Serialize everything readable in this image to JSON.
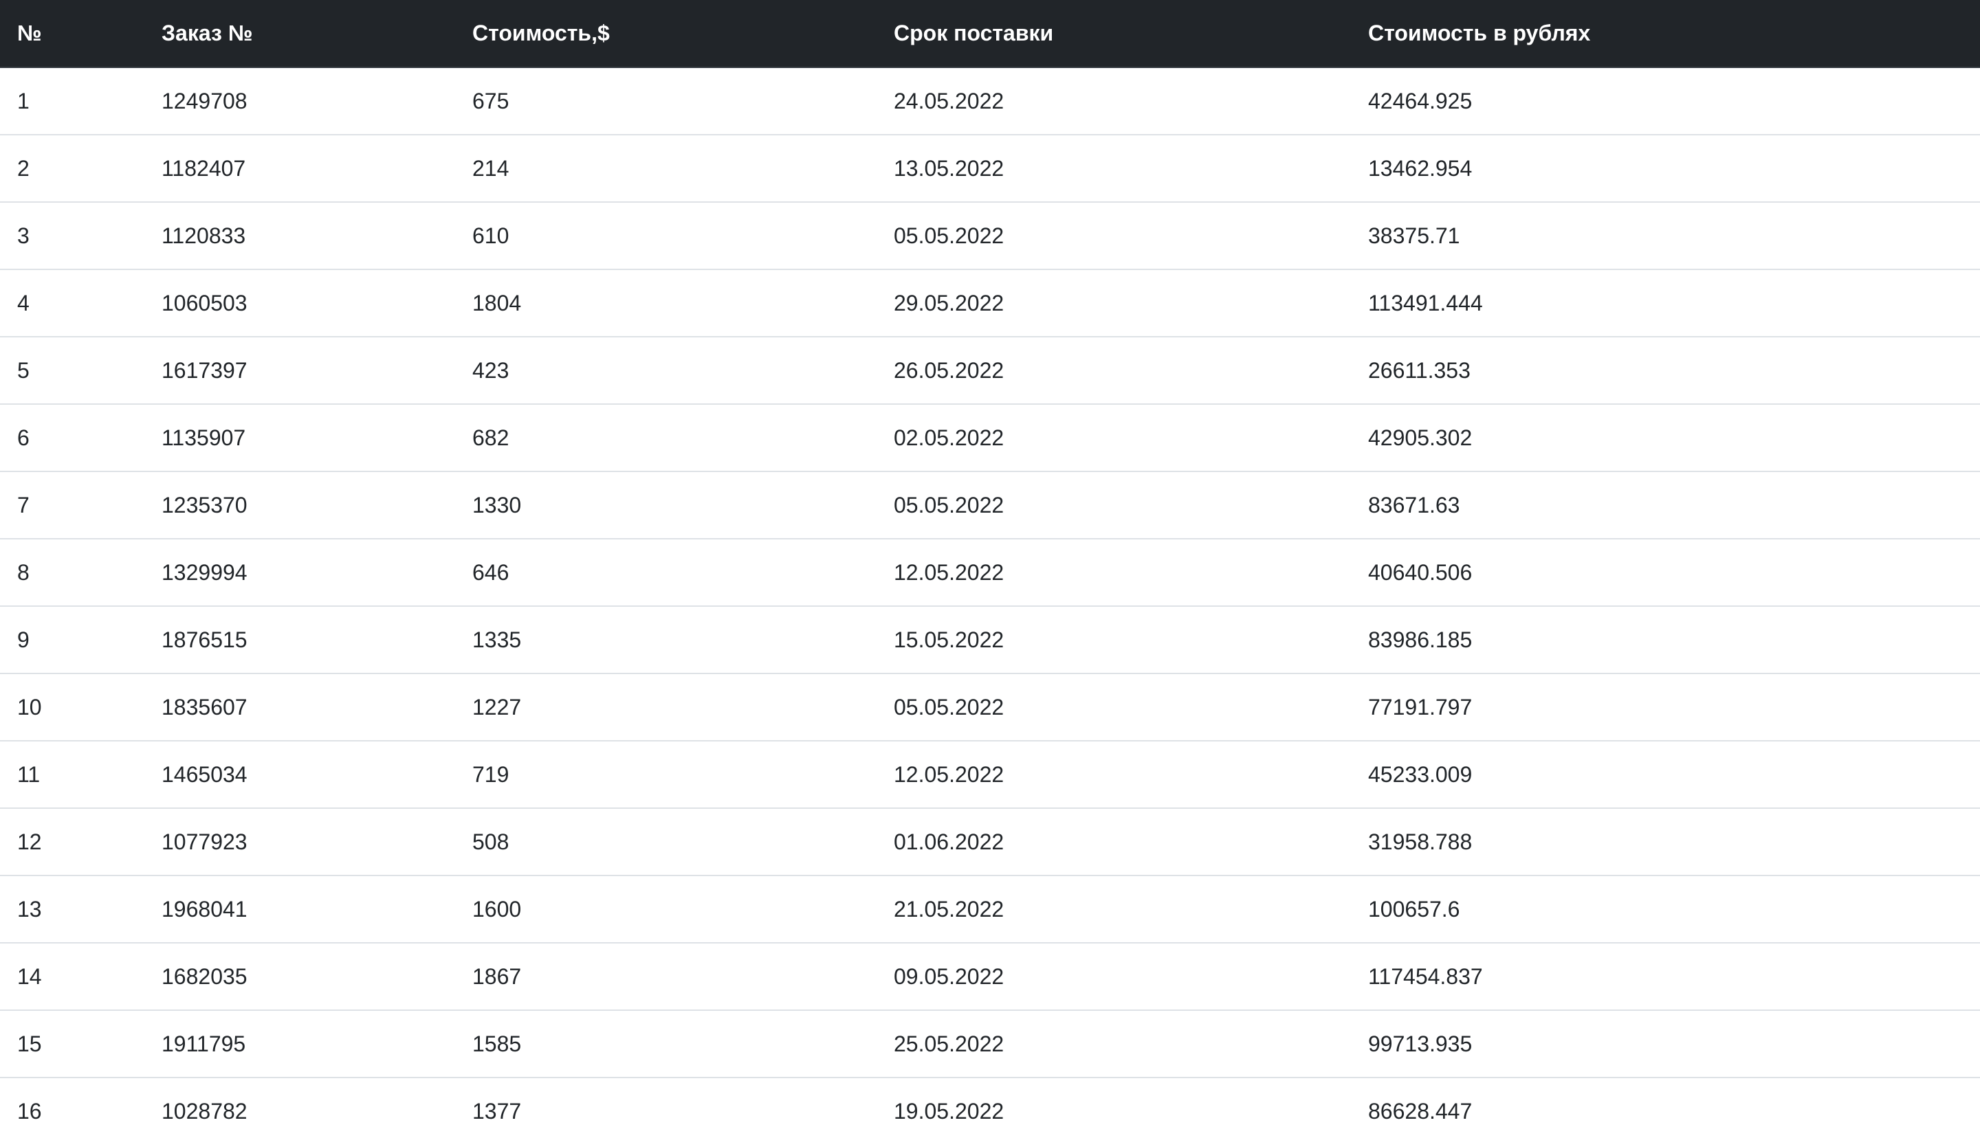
{
  "table": {
    "headers": [
      "№",
      "Заказ №",
      "Стоимость,$",
      "Срок поставки",
      "Стоимость в рублях"
    ],
    "rows": [
      [
        "1",
        "1249708",
        "675",
        "24.05.2022",
        "42464.925"
      ],
      [
        "2",
        "1182407",
        "214",
        "13.05.2022",
        "13462.954"
      ],
      [
        "3",
        "1120833",
        "610",
        "05.05.2022",
        "38375.71"
      ],
      [
        "4",
        "1060503",
        "1804",
        "29.05.2022",
        "113491.444"
      ],
      [
        "5",
        "1617397",
        "423",
        "26.05.2022",
        "26611.353"
      ],
      [
        "6",
        "1135907",
        "682",
        "02.05.2022",
        "42905.302"
      ],
      [
        "7",
        "1235370",
        "1330",
        "05.05.2022",
        "83671.63"
      ],
      [
        "8",
        "1329994",
        "646",
        "12.05.2022",
        "40640.506"
      ],
      [
        "9",
        "1876515",
        "1335",
        "15.05.2022",
        "83986.185"
      ],
      [
        "10",
        "1835607",
        "1227",
        "05.05.2022",
        "77191.797"
      ],
      [
        "11",
        "1465034",
        "719",
        "12.05.2022",
        "45233.009"
      ],
      [
        "12",
        "1077923",
        "508",
        "01.06.2022",
        "31958.788"
      ],
      [
        "13",
        "1968041",
        "1600",
        "21.05.2022",
        "100657.6"
      ],
      [
        "14",
        "1682035",
        "1867",
        "09.05.2022",
        "117454.837"
      ],
      [
        "15",
        "1911795",
        "1585",
        "25.05.2022",
        "99713.935"
      ],
      [
        "16",
        "1028782",
        "1377",
        "19.05.2022",
        "86628.447"
      ]
    ]
  }
}
